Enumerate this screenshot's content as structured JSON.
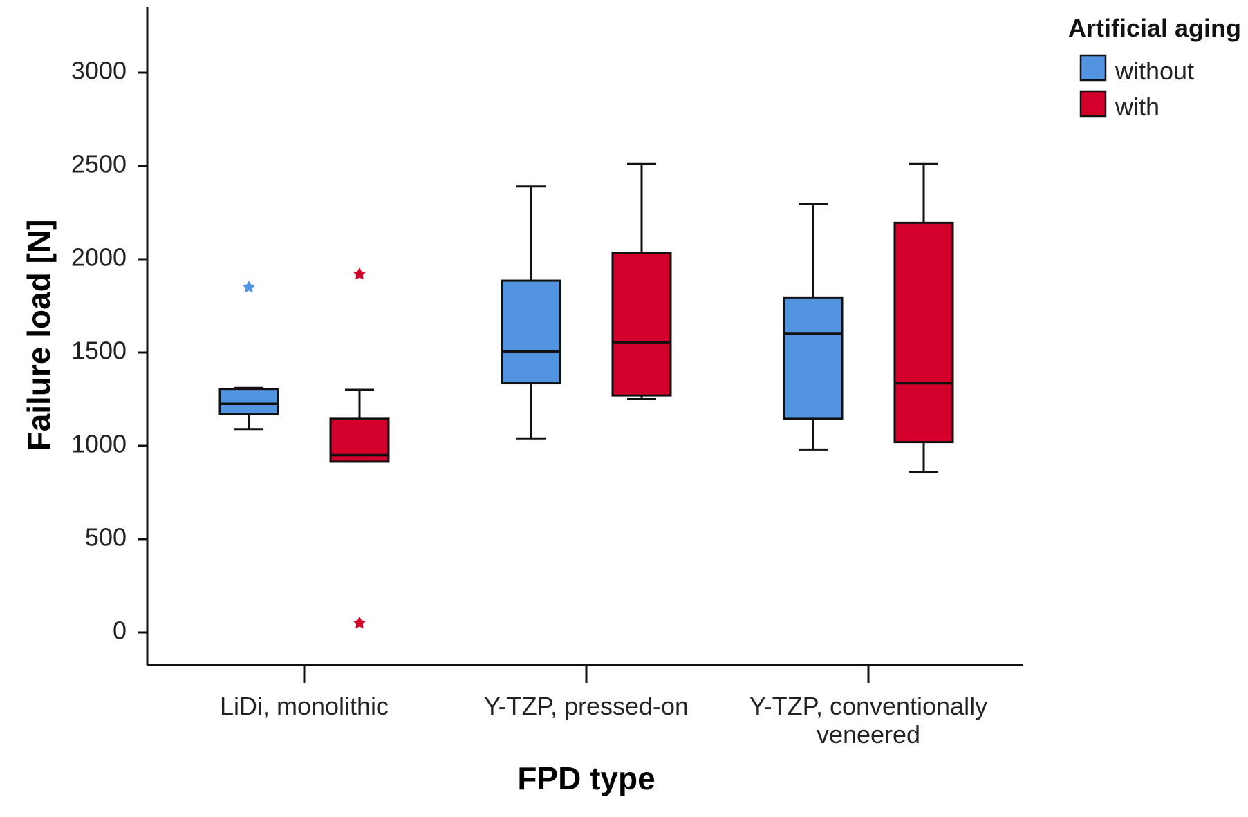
{
  "chart_data": {
    "type": "boxplot",
    "xlabel": "FPD type",
    "ylabel": "Failure load [N]",
    "ylim": [
      -160,
      3380
    ],
    "yticks": [
      0,
      500,
      1000,
      1500,
      2000,
      2500,
      3000
    ],
    "categories": [
      [
        "LiDi, monolithic"
      ],
      [
        "Y-TZP, pressed-on"
      ],
      [
        "Y-TZP, conventionally",
        "veneered"
      ]
    ],
    "legend": {
      "title": "Artificial aging",
      "position": "top-right",
      "entries": [
        "without",
        "with"
      ]
    },
    "colors": {
      "without": "#5394e0",
      "with": "#d2002a"
    },
    "series": [
      {
        "name": "without",
        "boxes": [
          {
            "min": 1090,
            "q1": 1170,
            "median": 1225,
            "q3": 1305,
            "max": 1310,
            "outliers": [
              1850
            ]
          },
          {
            "min": 1040,
            "q1": 1335,
            "median": 1505,
            "q3": 1885,
            "max": 2390,
            "outliers": []
          },
          {
            "min": 980,
            "q1": 1145,
            "median": 1600,
            "q3": 1795,
            "max": 2295,
            "outliers": []
          }
        ]
      },
      {
        "name": "with",
        "boxes": [
          {
            "min": 915,
            "q1": 915,
            "median": 950,
            "q3": 1145,
            "max": 1300,
            "outliers": [
              1920,
              50
            ]
          },
          {
            "min": 1250,
            "q1": 1270,
            "median": 1555,
            "q3": 2035,
            "max": 2510,
            "outliers": []
          },
          {
            "min": 860,
            "q1": 1020,
            "median": 1335,
            "q3": 2195,
            "max": 2510,
            "outliers": []
          }
        ]
      }
    ]
  }
}
